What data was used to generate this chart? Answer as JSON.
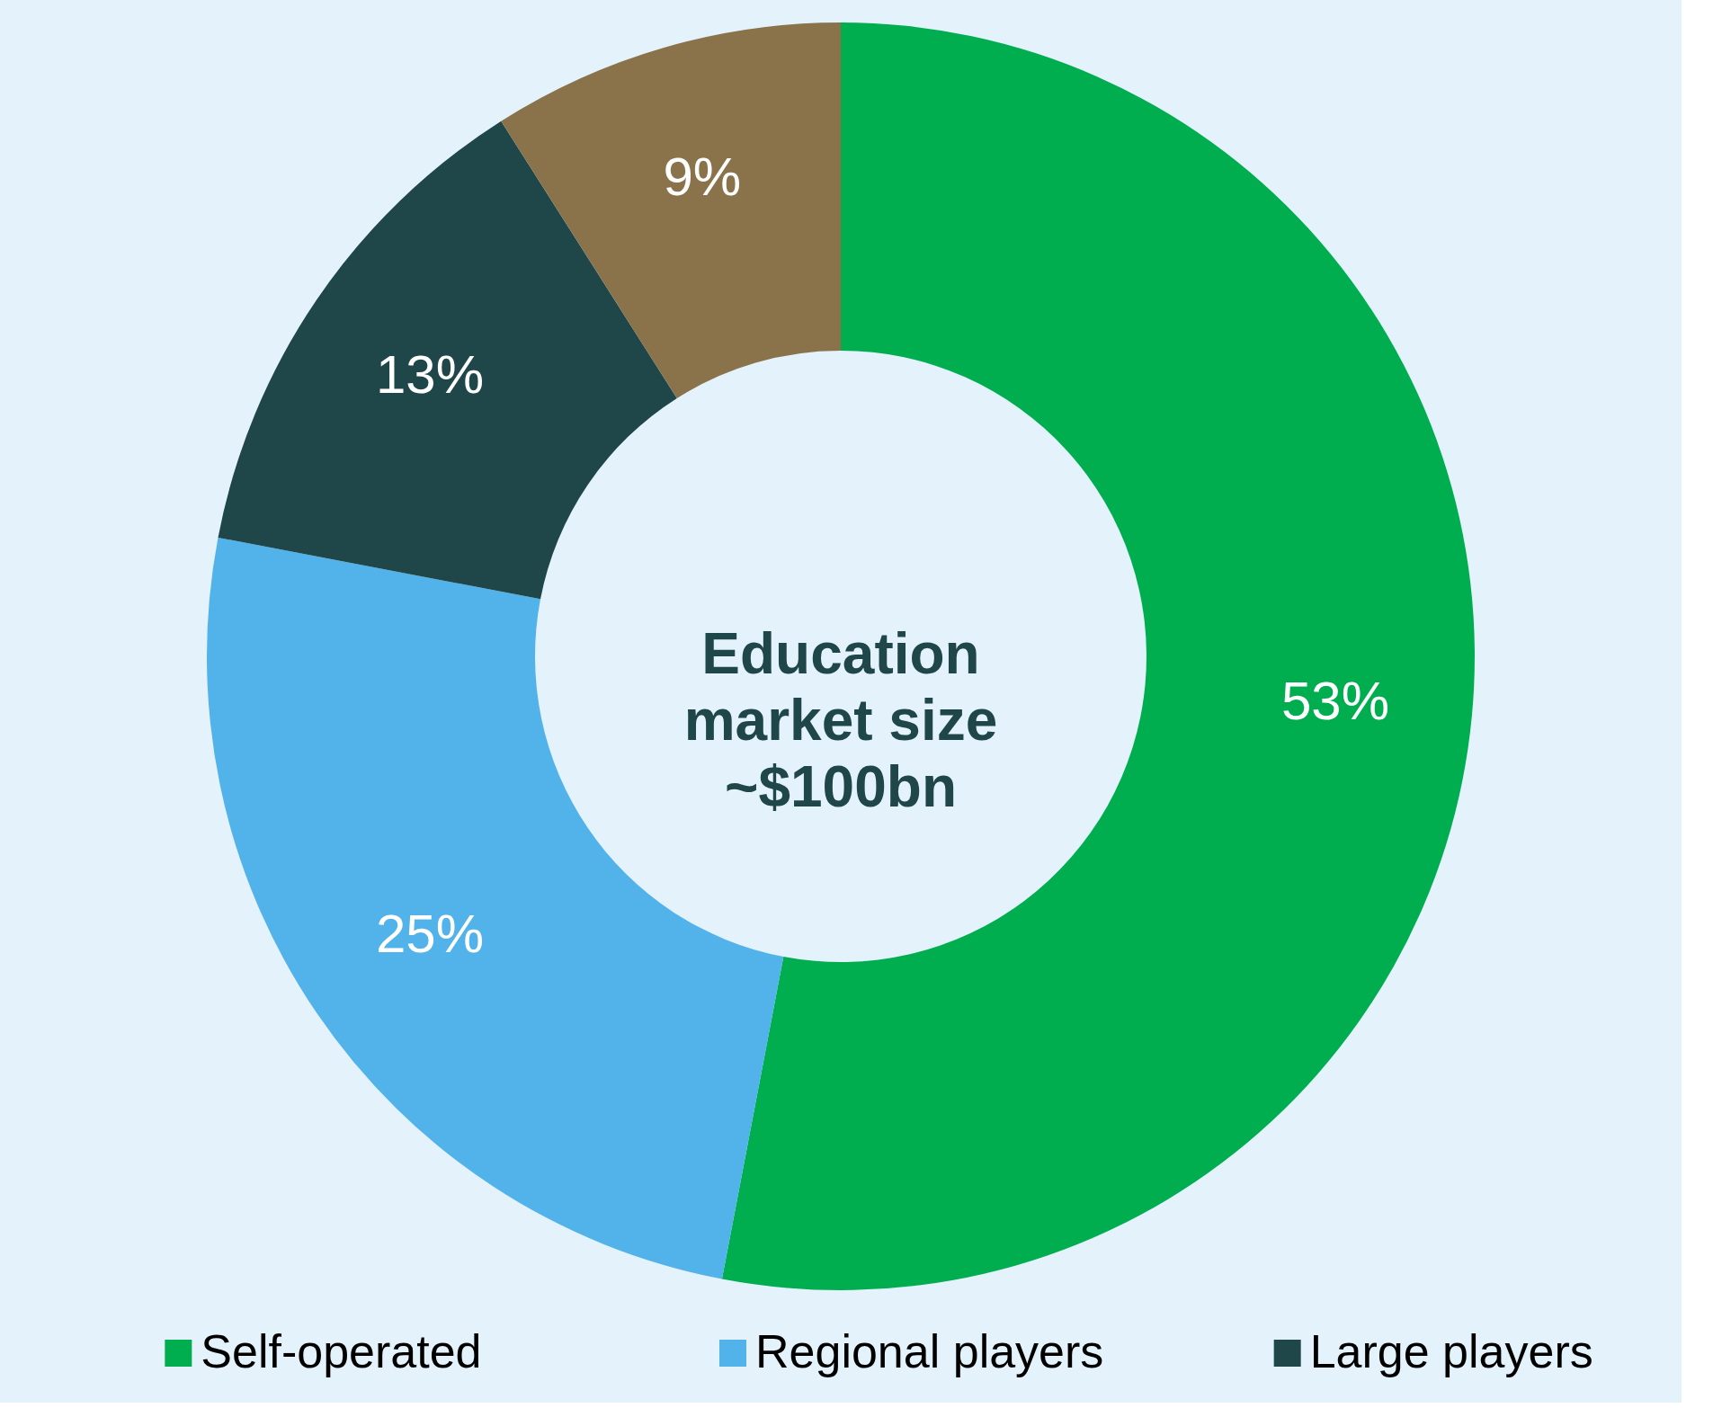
{
  "chart_data": {
    "type": "donut",
    "categories": [
      "Self-operated",
      "Regional players",
      "Large players",
      null
    ],
    "values": [
      53,
      25,
      13,
      9
    ],
    "colors": [
      "#00ae4f",
      "#52b2ea",
      "#1f4648",
      "#8a734a"
    ],
    "value_labels": [
      "53%",
      "25%",
      "13%",
      "9%"
    ],
    "annotations": [
      "Education\nmarket size\n~$100bn"
    ],
    "legend": "bottom"
  }
}
